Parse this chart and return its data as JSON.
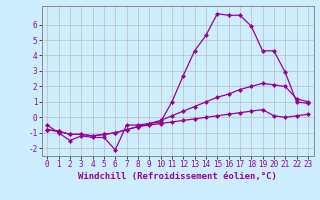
{
  "title": "",
  "xlabel": "Windchill (Refroidissement éolien,°C)",
  "ylabel": "",
  "background_color": "#cceeff",
  "line_color": "#990099",
  "xlim": [
    -0.5,
    23.5
  ],
  "ylim": [
    -2.5,
    7.2
  ],
  "xticks": [
    0,
    1,
    2,
    3,
    4,
    5,
    6,
    7,
    8,
    9,
    10,
    11,
    12,
    13,
    14,
    15,
    16,
    17,
    18,
    19,
    20,
    21,
    22,
    23
  ],
  "yticks": [
    -2,
    -1,
    0,
    1,
    2,
    3,
    4,
    5,
    6
  ],
  "series": [
    {
      "x": [
        0,
        1,
        2,
        3,
        4,
        5,
        6,
        7,
        8,
        9,
        10,
        11,
        12,
        13,
        14,
        15,
        16,
        17,
        18,
        19,
        20,
        21,
        22,
        23
      ],
      "y": [
        -0.5,
        -1.0,
        -1.5,
        -1.2,
        -1.3,
        -1.3,
        -2.1,
        -0.5,
        -0.5,
        -0.4,
        -0.3,
        1.0,
        2.7,
        4.3,
        5.3,
        6.7,
        6.6,
        6.6,
        5.9,
        4.3,
        4.3,
        2.9,
        1.0,
        0.9
      ]
    },
    {
      "x": [
        0,
        1,
        2,
        3,
        4,
        5,
        6,
        7,
        8,
        9,
        10,
        11,
        12,
        13,
        14,
        15,
        16,
        17,
        18,
        19,
        20,
        21,
        22,
        23
      ],
      "y": [
        -0.8,
        -0.9,
        -1.1,
        -1.1,
        -1.2,
        -1.1,
        -1.0,
        -0.8,
        -0.6,
        -0.4,
        -0.2,
        0.1,
        0.4,
        0.7,
        1.0,
        1.3,
        1.5,
        1.8,
        2.0,
        2.2,
        2.1,
        2.0,
        1.2,
        1.0
      ]
    },
    {
      "x": [
        0,
        1,
        2,
        3,
        4,
        5,
        6,
        7,
        8,
        9,
        10,
        11,
        12,
        13,
        14,
        15,
        16,
        17,
        18,
        19,
        20,
        21,
        22,
        23
      ],
      "y": [
        -0.8,
        -0.9,
        -1.1,
        -1.1,
        -1.2,
        -1.1,
        -1.0,
        -0.8,
        -0.6,
        -0.5,
        -0.4,
        -0.3,
        -0.2,
        -0.1,
        0.0,
        0.1,
        0.2,
        0.3,
        0.4,
        0.5,
        0.1,
        0.0,
        0.1,
        0.2
      ]
    }
  ],
  "grid_color": "#bbbbbb",
  "tick_fontsize": 5.5,
  "xlabel_fontsize": 6.5,
  "marker": "D",
  "marker_size": 2.0,
  "line_width": 0.9
}
